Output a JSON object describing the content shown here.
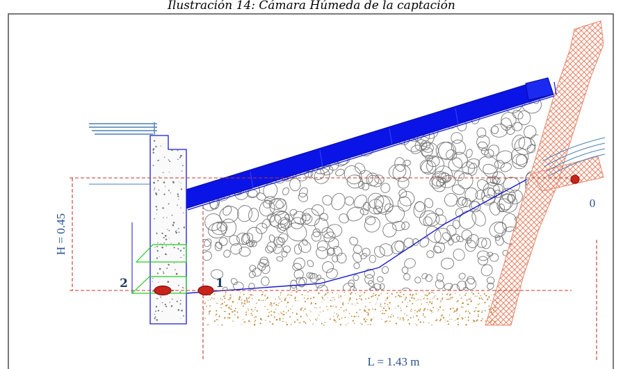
{
  "caption": "Ilustración 14: Cámara Húmeda de la captación",
  "labels": {
    "height": "H = 0.45",
    "length": "L = 1.43 m",
    "point_0": "0",
    "point_1": "1",
    "point_2": "2"
  },
  "colors": {
    "cover": "#0b14e6",
    "soil_hatch": "#e8876a",
    "sand": "#c08a3a",
    "dim_line": "#c0392b",
    "stones": "#777777",
    "steps": "#22cc22",
    "marker": "#c8241b",
    "water": "#4a7fb3"
  }
}
